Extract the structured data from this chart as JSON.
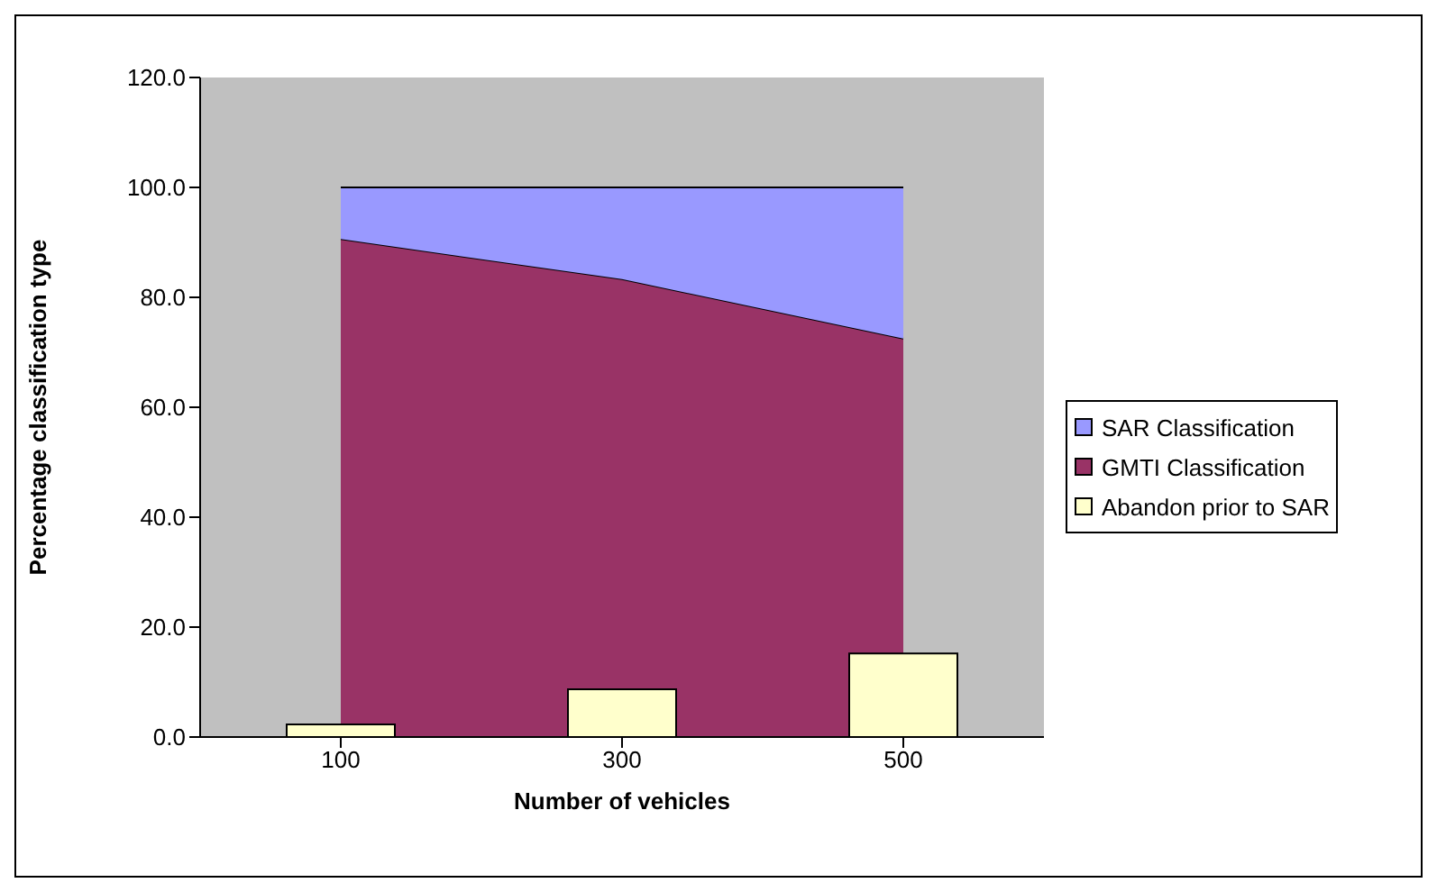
{
  "chart_data": {
    "type": "area",
    "xlabel": "Number of vehicles",
    "ylabel": "Percentage classification type",
    "categories": [
      "100",
      "300",
      "500"
    ],
    "stacked": true,
    "ylim": [
      0,
      120
    ],
    "yticks": [
      {
        "value": 0,
        "label": "0.0"
      },
      {
        "value": 20,
        "label": "20.0"
      },
      {
        "value": 40,
        "label": "40.0"
      },
      {
        "value": 60,
        "label": "60.0"
      },
      {
        "value": 80,
        "label": "80.0"
      },
      {
        "value": 100,
        "label": "100.0"
      },
      {
        "value": 120,
        "label": "120.0"
      }
    ],
    "grid": false,
    "legend": "right",
    "series": [
      {
        "name": "GMTI Classification",
        "color": "#993366",
        "values": [
          90.6,
          83.3,
          72.5
        ]
      },
      {
        "name": "SAR Classification",
        "color": "#9999ff",
        "values": [
          9.4,
          16.7,
          27.5
        ]
      },
      {
        "name": "Abandon prior to SAR",
        "color": "#ffffcc",
        "type": "bar",
        "values": [
          2.3,
          8.7,
          15.2
        ]
      }
    ]
  }
}
